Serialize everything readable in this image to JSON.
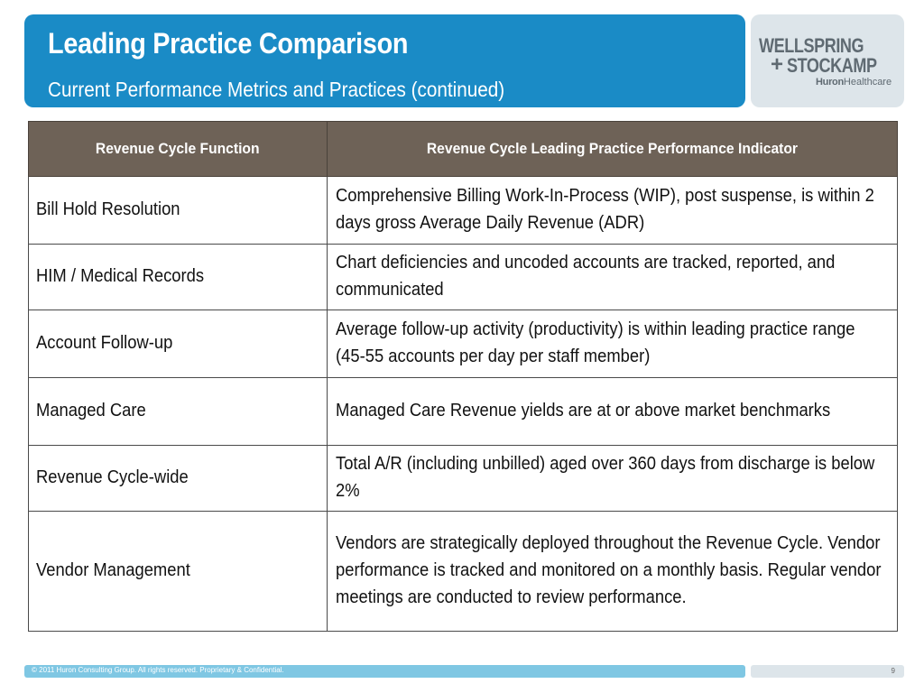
{
  "header": {
    "title": "Leading Practice Comparison",
    "subtitle": "Current Performance Metrics and Practices (continued)"
  },
  "logo": {
    "line1": "WELLSPRING",
    "plus": "+",
    "line2": "STOCKAMP",
    "brand_bold": "Huron",
    "brand_rest": "Healthcare"
  },
  "table": {
    "headers": [
      "Revenue Cycle Function",
      "Revenue Cycle Leading Practice Performance Indicator"
    ],
    "rows": [
      {
        "function": "Bill Hold Resolution",
        "indicator": "Comprehensive Billing Work-In-Process (WIP), post suspense, is within 2 days gross Average Daily Revenue (ADR)"
      },
      {
        "function": "HIM / Medical Records",
        "indicator": "Chart deficiencies and uncoded accounts are tracked, reported, and communicated"
      },
      {
        "function": "Account Follow-up",
        "indicator": "Average follow-up activity (productivity) is within leading practice range (45-55 accounts per day per staff member)"
      },
      {
        "function": "Managed Care",
        "indicator": "Managed Care Revenue yields are at or above market benchmarks"
      },
      {
        "function": "Revenue Cycle-wide",
        "indicator": "Total A/R (including unbilled) aged over 360 days from discharge is below 2%"
      },
      {
        "function": "Vendor Management",
        "indicator": "Vendors are strategically deployed throughout the Revenue Cycle.  Vendor performance is tracked and monitored on a monthly basis.  Regular vendor meetings are conducted to review performance."
      }
    ]
  },
  "footer": {
    "copyright": "© 2011 Huron Consulting Group. All rights reserved. Proprietary & Confidential.",
    "page": "9"
  },
  "colors": {
    "header_blue": "#1a8bc6",
    "table_header": "#6e6257",
    "footer_blue": "#7fc7e3",
    "logo_bg": "#dde5ea"
  }
}
